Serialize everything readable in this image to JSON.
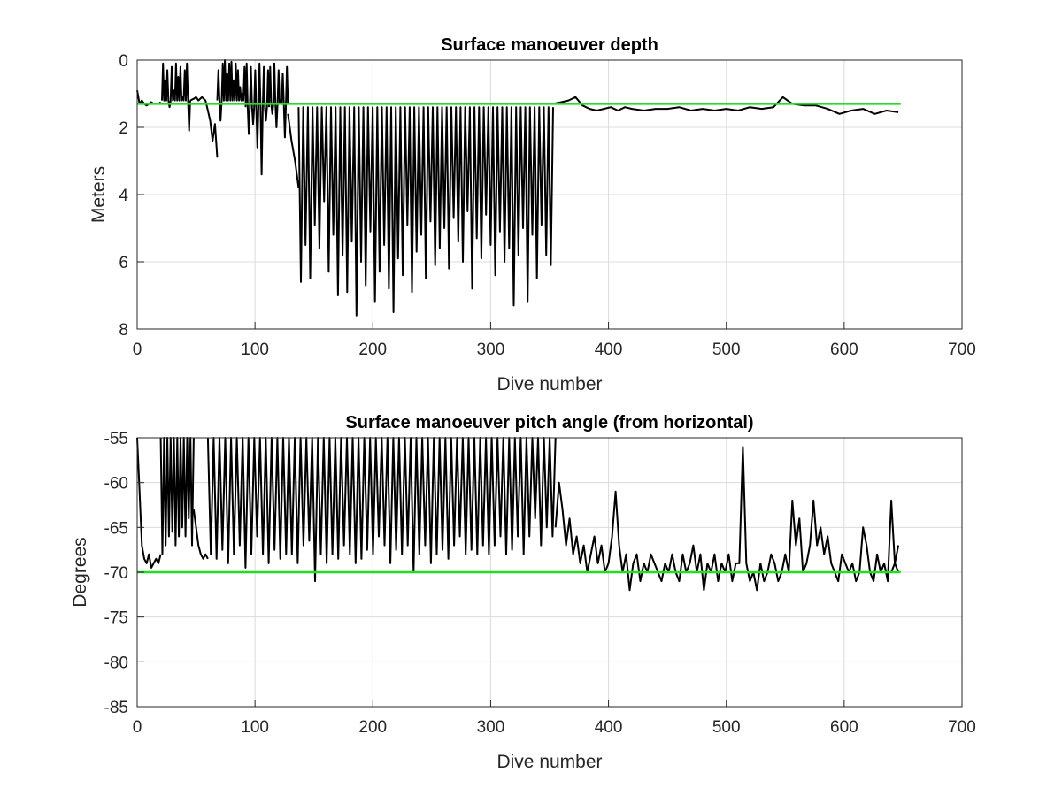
{
  "colors": {
    "data_series": "#000000",
    "reference_line": "#22dd22"
  },
  "chart_data": [
    {
      "type": "line",
      "title": "Surface manoeuver depth",
      "xlabel": "Dive number",
      "ylabel": "Meters",
      "xlim": [
        0,
        700
      ],
      "ylim": [
        0,
        8
      ],
      "y_reversed": true,
      "grid": true,
      "legend": "none",
      "xticks": [
        0,
        100,
        200,
        300,
        400,
        500,
        600,
        700
      ],
      "yticks": [
        0,
        2,
        4,
        6,
        8
      ],
      "series": [
        {
          "role": "measured",
          "color": "#000000",
          "segments": [
            {
              "style": "trace",
              "x": [
                0,
                2,
                4,
                6,
                8,
                10,
                12,
                14,
                16,
                18,
                20
              ],
              "y": [
                0.9,
                1.3,
                1.2,
                1.3,
                1.35,
                1.3,
                1.25,
                1.3,
                1.3,
                1.3,
                1.25
              ]
            },
            {
              "style": "spikes",
              "x_start": 21,
              "x_end": 45,
              "step": 2,
              "base": 1.2,
              "peaks": [
                0.1,
                0.6,
                0.3,
                1.4,
                0.2,
                0.9,
                0.1,
                0.5,
                0.2,
                1.1,
                0.3,
                0.1,
                2.1
              ]
            },
            {
              "style": "trace",
              "x": [
                45,
                48,
                50,
                52,
                55,
                58,
                60,
                62,
                64,
                66,
                68
              ],
              "y": [
                1.2,
                1.15,
                1.1,
                1.2,
                1.1,
                1.2,
                1.5,
                1.8,
                2.4,
                1.9,
                2.9
              ]
            },
            {
              "style": "spikes",
              "x_start": 68,
              "x_end": 92,
              "step": 2,
              "base": 1.2,
              "peaks": [
                0.3,
                1.8,
                0.1,
                0.0,
                0.4,
                0.1,
                0.05,
                0.6,
                0.1,
                0.3,
                0.8,
                1.0,
                0.2
              ]
            },
            {
              "style": "spikes",
              "x_start": 92,
              "x_end": 112,
              "step": 2,
              "base": 1.4,
              "peaks": [
                0.1,
                2.2,
                0.2,
                1.9,
                0.3,
                2.6,
                0.1,
                3.4,
                0.2,
                1.8,
                0.3
              ]
            },
            {
              "style": "spikes",
              "x_start": 112,
              "x_end": 128,
              "step": 2,
              "base": 1.3,
              "peaks": [
                0.2,
                1.6,
                0.1,
                2.0,
                0.3,
                1.2,
                0.4,
                2.3,
                0.2
              ]
            },
            {
              "style": "trace",
              "x": [
                128,
                131,
                134,
                137
              ],
              "y": [
                1.6,
                2.4,
                3.0,
                3.8
              ]
            },
            {
              "style": "spikes",
              "x_start": 137,
              "x_end": 353,
              "step": 4,
              "base": 1.4,
              "peaks": [
                6.6,
                5.5,
                6.5,
                4.9,
                5.6,
                4.2,
                6.3,
                5.2,
                7.0,
                5.8,
                6.9,
                5.4,
                7.6,
                6.0,
                6.7,
                5.1,
                7.2,
                6.3,
                5.5,
                6.8,
                7.5,
                5.9,
                6.4,
                4.9,
                6.9,
                5.7,
                5.2,
                6.5,
                4.8,
                6.1,
                5.6,
                5.0,
                6.2,
                4.7,
                5.4,
                6.0,
                4.5,
                6.8,
                5.3,
                5.9,
                4.6,
                5.5,
                6.4,
                5.1,
                6.0,
                5.6,
                7.3,
                5.8,
                5.0,
                7.2,
                5.2,
                6.5,
                4.9,
                5.8,
                6.1
              ]
            },
            {
              "style": "trace",
              "x": [
                353,
                360,
                366,
                372,
                378,
                384,
                390,
                396,
                402,
                408,
                414,
                420,
                430,
                440,
                450,
                460,
                470,
                480,
                490,
                500,
                510,
                520,
                530,
                540,
                548,
                556,
                566,
                576,
                586,
                596,
                606,
                616,
                626,
                636,
                646
              ],
              "y": [
                1.3,
                1.25,
                1.2,
                1.1,
                1.35,
                1.45,
                1.5,
                1.45,
                1.4,
                1.5,
                1.4,
                1.45,
                1.5,
                1.45,
                1.45,
                1.4,
                1.5,
                1.45,
                1.5,
                1.45,
                1.5,
                1.4,
                1.45,
                1.4,
                1.1,
                1.3,
                1.35,
                1.35,
                1.45,
                1.6,
                1.5,
                1.45,
                1.6,
                1.5,
                1.55
              ]
            }
          ]
        },
        {
          "role": "reference",
          "color": "#22dd22",
          "x": [
            0,
            648
          ],
          "y": [
            1.3,
            1.3
          ]
        }
      ]
    },
    {
      "type": "line",
      "title": "Surface manoeuver pitch angle (from horizontal)",
      "xlabel": "Dive number",
      "ylabel": "Degrees",
      "xlim": [
        0,
        700
      ],
      "ylim": [
        -85,
        -55
      ],
      "y_reversed": false,
      "grid": true,
      "legend": "none",
      "xticks": [
        0,
        100,
        200,
        300,
        400,
        500,
        600,
        700
      ],
      "yticks": [
        -55,
        -60,
        -65,
        -70,
        -75,
        -80,
        -85
      ],
      "series": [
        {
          "role": "measured",
          "color": "#000000",
          "segments": [
            {
              "style": "trace",
              "x": [
                0,
                2,
                4,
                6,
                8,
                10,
                12,
                14,
                16,
                18,
                20
              ],
              "y": [
                -55,
                -61,
                -67,
                -68.5,
                -69,
                -68,
                -69.5,
                -69,
                -68.5,
                -69,
                -68
              ]
            },
            {
              "style": "spikes",
              "x_start": 20,
              "x_end": 48,
              "step": 3,
              "base": -55,
              "peaks": [
                -68,
                -67,
                -66,
                -65.5,
                -67,
                -66,
                -65,
                -66,
                -64,
                -67
              ]
            },
            {
              "style": "trace",
              "x": [
                48,
                50,
                52,
                54,
                56,
                58,
                60
              ],
              "y": [
                -63,
                -65,
                -67,
                -68,
                -68.5,
                -68,
                -68.5
              ]
            },
            {
              "style": "spikes",
              "x_start": 60,
              "x_end": 355,
              "step": 5,
              "base": -55,
              "peaks": [
                -68,
                -68.5,
                -67.5,
                -69,
                -68,
                -67,
                -69.5,
                -68,
                -66,
                -68,
                -69,
                -67.5,
                -68.5,
                -68,
                -68,
                -69,
                -67,
                -66.5,
                -71,
                -68,
                -69,
                -68,
                -68.5,
                -67,
                -68,
                -69,
                -68.5,
                -67.5,
                -68,
                -66,
                -67,
                -69,
                -67.5,
                -68,
                -67,
                -70,
                -68,
                -67,
                -69,
                -68,
                -67.5,
                -68.5,
                -67,
                -66,
                -68,
                -67.5,
                -68,
                -67,
                -68,
                -67,
                -66,
                -68,
                -67.5,
                -66,
                -68,
                -66,
                -64,
                -67,
                -65,
                -66
              ]
            },
            {
              "style": "trace",
              "x": [
                355,
                358,
                361,
                364,
                367,
                370,
                373,
                376,
                379,
                382,
                385,
                388,
                391,
                394,
                397,
                400,
                403,
                406,
                409,
                412,
                415,
                418,
                421,
                424,
                427,
                430,
                433,
                436,
                439,
                442,
                445,
                448,
                451,
                454,
                457,
                460,
                463,
                466,
                469,
                472,
                475,
                478,
                481,
                484,
                487,
                490,
                493,
                496,
                499,
                502,
                505,
                508,
                511,
                514,
                517,
                520,
                523,
                526,
                529,
                532,
                535,
                538,
                541,
                544,
                547,
                550,
                553,
                556,
                559,
                562,
                565,
                568,
                571,
                574,
                577,
                580,
                583,
                586,
                589,
                592,
                595,
                598,
                601,
                604,
                607,
                610,
                613,
                616,
                619,
                622,
                625,
                628,
                631,
                634,
                637,
                640,
                643,
                646
              ],
              "y": [
                -65,
                -60,
                -63,
                -67,
                -64,
                -68,
                -66,
                -69,
                -67,
                -70,
                -68,
                -66,
                -69,
                -67,
                -70,
                -69,
                -66,
                -61,
                -67,
                -70,
                -68,
                -72,
                -69,
                -68,
                -71,
                -69,
                -70,
                -68,
                -69,
                -70,
                -71,
                -69,
                -70,
                -68,
                -70,
                -71,
                -68,
                -70,
                -69,
                -67,
                -70,
                -68,
                -72,
                -69,
                -70,
                -68,
                -71,
                -69,
                -70,
                -68,
                -71,
                -69,
                -69,
                -56,
                -69,
                -71,
                -70,
                -72,
                -69,
                -71,
                -70,
                -68,
                -69,
                -71,
                -70,
                -68,
                -70,
                -62,
                -67,
                -64,
                -70,
                -69,
                -67,
                -62,
                -67,
                -65,
                -68,
                -66,
                -69,
                -70,
                -71,
                -68,
                -69,
                -70,
                -69,
                -71,
                -70,
                -65,
                -67,
                -70,
                -71,
                -68,
                -70,
                -69,
                -71,
                -62,
                -69,
                -70
              ]
            },
            {
              "style": "trace",
              "x": [
                640,
                643,
                646
              ],
              "y": [
                -70,
                -69,
                -67
              ]
            }
          ]
        },
        {
          "role": "reference",
          "color": "#22dd22",
          "x": [
            0,
            648
          ],
          "y": [
            -70,
            -70
          ]
        }
      ]
    }
  ]
}
